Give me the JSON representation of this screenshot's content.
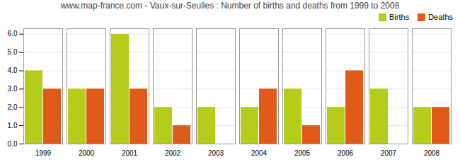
{
  "chart_data": {
    "type": "bar",
    "title": "www.map-france.com - Vaux-sur-Seulles : Number of births and deaths from 1999 to 2008",
    "categories": [
      "1999",
      "2000",
      "2001",
      "2002",
      "2003",
      "2004",
      "2005",
      "2006",
      "2007",
      "2008"
    ],
    "series": [
      {
        "name": "Births",
        "color": "#b5cc1a",
        "values": [
          4,
          3,
          6,
          2,
          2,
          2,
          3,
          2,
          3,
          2
        ]
      },
      {
        "name": "Deaths",
        "color": "#e05a1a",
        "values": [
          3,
          3,
          3,
          1,
          0,
          3,
          1,
          4,
          0,
          2
        ]
      }
    ],
    "ylim": [
      0,
      6.3
    ],
    "yticks": [
      0,
      1,
      2,
      3,
      4,
      5,
      6
    ],
    "grid": true,
    "legend": "upper right"
  }
}
